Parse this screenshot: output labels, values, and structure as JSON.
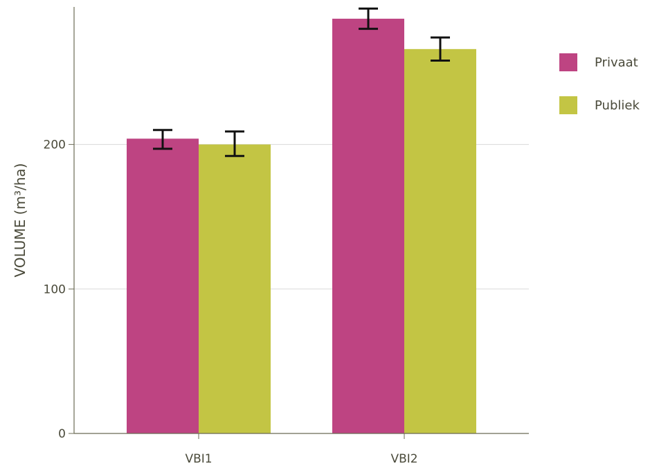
{
  "chart_data": {
    "type": "bar",
    "title": "",
    "xlabel": "",
    "ylabel": "VOLUME (m³/ha)",
    "categories": [
      "VBI1",
      "VBI2"
    ],
    "series": [
      {
        "name": "Privaat",
        "color": "#be4482",
        "values": [
          204,
          287
        ],
        "error_low": [
          197,
          280
        ],
        "error_high": [
          210,
          294
        ]
      },
      {
        "name": "Publiek",
        "color": "#c3c544",
        "values": [
          200,
          266
        ],
        "error_low": [
          192,
          258
        ],
        "error_high": [
          209,
          274
        ]
      }
    ],
    "ylim": [
      0,
      295
    ],
    "yticks": [
      0,
      100,
      200
    ],
    "ytick_labels": [
      "0",
      "100",
      "200"
    ],
    "grid": true,
    "legend_position": "right"
  }
}
